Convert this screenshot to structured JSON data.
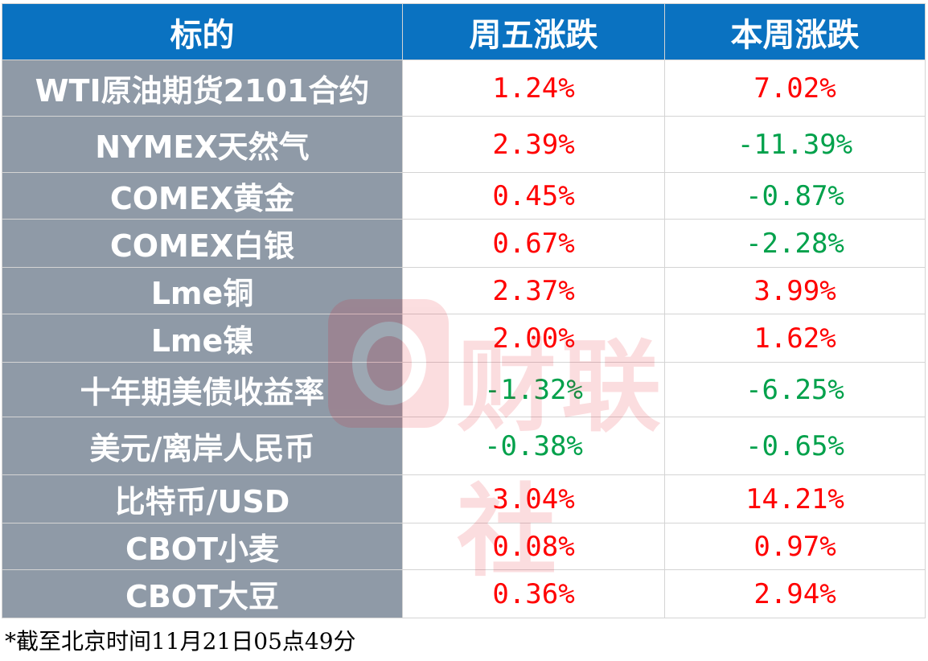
{
  "table": {
    "headers": [
      "标的",
      "周五涨跌",
      "本周涨跌"
    ],
    "rows": [
      {
        "name": "WTI原油期货2101合约",
        "friday": "1.24%",
        "friday_dir": "up",
        "week": "7.02%",
        "week_dir": "up"
      },
      {
        "name": "NYMEX天然气",
        "friday": "2.39%",
        "friday_dir": "up",
        "week": "-11.39%",
        "week_dir": "down"
      },
      {
        "name": "COMEX黄金",
        "friday": "0.45%",
        "friday_dir": "up",
        "week": "-0.87%",
        "week_dir": "down"
      },
      {
        "name": "COMEX白银",
        "friday": "0.67%",
        "friday_dir": "up",
        "week": "-2.28%",
        "week_dir": "down"
      },
      {
        "name": "Lme铜",
        "friday": "2.37%",
        "friday_dir": "up",
        "week": "3.99%",
        "week_dir": "up"
      },
      {
        "name": "Lme镍",
        "friday": "2.00%",
        "friday_dir": "up",
        "week": "1.62%",
        "week_dir": "up"
      },
      {
        "name": "十年期美债收益率",
        "friday": "-1.32%",
        "friday_dir": "down",
        "week": "-6.25%",
        "week_dir": "down"
      },
      {
        "name": "美元/离岸人民币",
        "friday": "-0.38%",
        "friday_dir": "down",
        "week": "-0.65%",
        "week_dir": "down"
      },
      {
        "name": "比特币/USD",
        "friday": "3.04%",
        "friday_dir": "up",
        "week": "14.21%",
        "week_dir": "up"
      },
      {
        "name": "CBOT小麦",
        "friday": "0.08%",
        "friday_dir": "up",
        "week": "0.97%",
        "week_dir": "up"
      },
      {
        "name": "CBOT大豆",
        "friday": "0.36%",
        "friday_dir": "up",
        "week": "2.94%",
        "week_dir": "up"
      }
    ]
  },
  "footnote": "*截至北京时间11月21日05点49分",
  "watermark": {
    "text": "财联社",
    "icon": "cailianshe-logo-icon"
  },
  "colors": {
    "header_bg": "#0a72c1",
    "name_bg": "#8f9aa7",
    "up": "#ff0000",
    "down": "#00a14b"
  }
}
